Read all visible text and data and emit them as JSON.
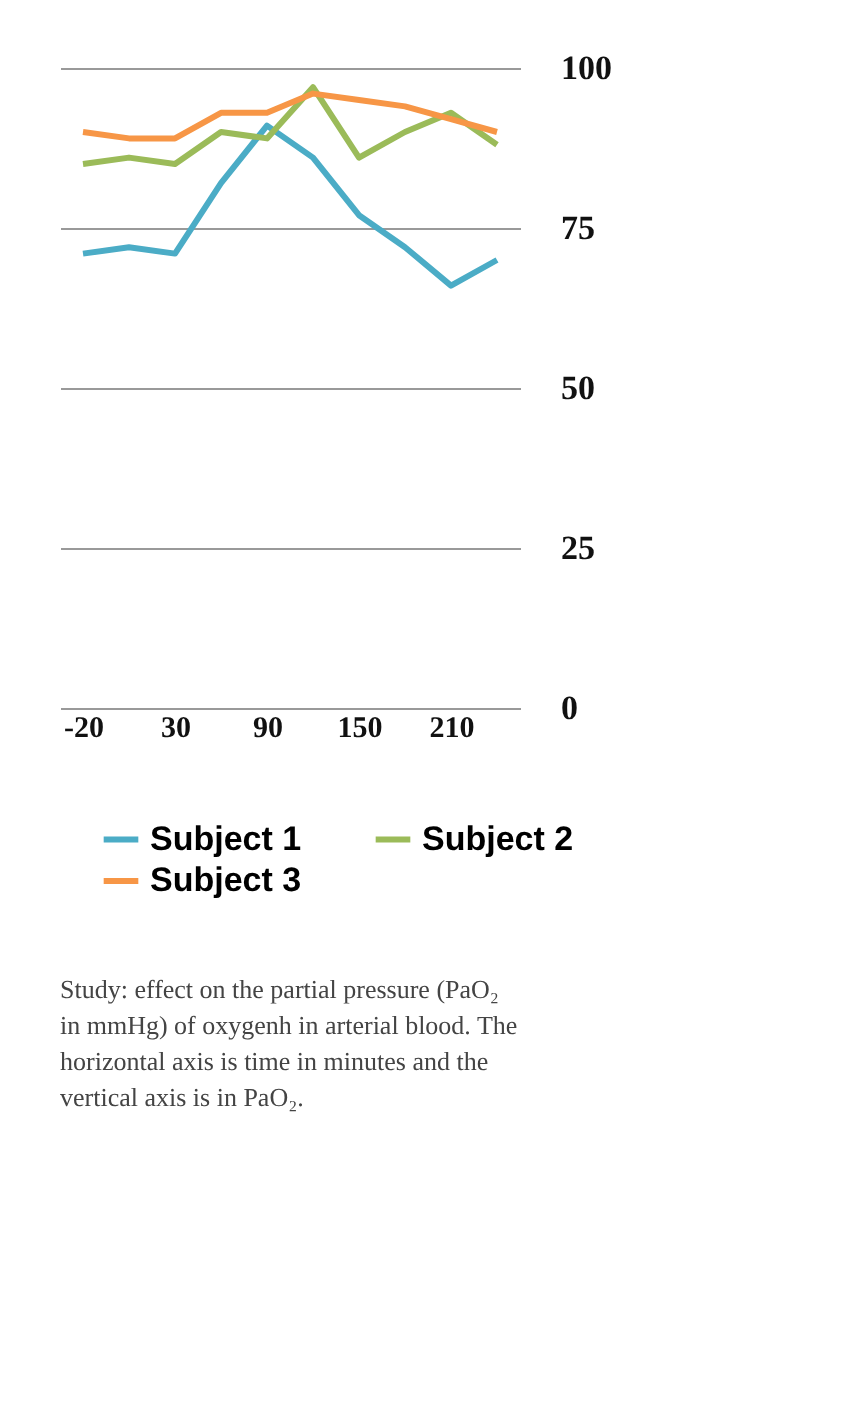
{
  "chart_data": {
    "type": "line",
    "categories": [
      "-20",
      null,
      "30",
      null,
      "90",
      null,
      "150",
      null,
      "210",
      null
    ],
    "series": [
      {
        "name": "Subject 1",
        "color": "#4bacc6",
        "values": [
          71,
          72,
          71,
          82,
          91,
          86,
          77,
          72,
          66,
          70
        ]
      },
      {
        "name": "Subject 2",
        "color": "#9bbb59",
        "values": [
          85,
          86,
          85,
          90,
          89,
          97,
          86,
          90,
          93,
          88
        ]
      },
      {
        "name": "Subject 3",
        "color": "#f79646",
        "values": [
          90,
          89,
          89,
          93,
          93,
          96,
          95,
          94,
          92,
          90
        ]
      }
    ],
    "ylim": [
      0,
      100
    ],
    "yticks": [
      0,
      25,
      50,
      75,
      100
    ],
    "grid": "y",
    "legend": "bottom",
    "marker": "none",
    "line_style": "solid",
    "annotations": [
      "Study: effect on the partial pressure (PaO₂ in mmHg) of oxygenh in arterial blood. The horizontal axis is time in minutes and the vertical axis is in PaO₂."
    ]
  }
}
